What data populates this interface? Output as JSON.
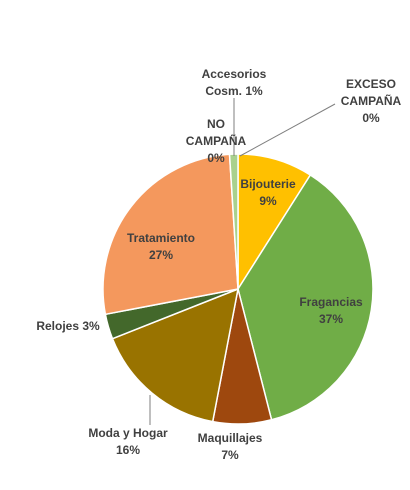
{
  "chart_data": {
    "type": "pie",
    "slices": [
      {
        "name": "Bijouterie",
        "value": 9,
        "label_lines": [
          "Bijouterie",
          "9%"
        ],
        "color": "#ffc000"
      },
      {
        "name": "Fragancias",
        "value": 37,
        "label_lines": [
          "Fragancias",
          "37%"
        ],
        "color": "#70ad47"
      },
      {
        "name": "Maquillajes",
        "value": 7,
        "label_lines": [
          "Maquillajes",
          "7%"
        ],
        "color": "#9e480e"
      },
      {
        "name": "Moda y Hogar",
        "value": 16,
        "label_lines": [
          "Moda y Hogar",
          "16%"
        ],
        "color": "#997300"
      },
      {
        "name": "Relojes",
        "value": 3,
        "label_lines": [
          "Relojes 3%"
        ],
        "color": "#43682b"
      },
      {
        "name": "Tratamiento",
        "value": 27,
        "label_lines": [
          "Tratamiento",
          "27%"
        ],
        "color": "#f4985d"
      },
      {
        "name": "NO CAMPAÑA",
        "value": 0,
        "label_lines": [
          "NO",
          "CAMPAÑA",
          "0%"
        ],
        "color": "#5b9bd5"
      },
      {
        "name": "Accesorios Cosm.",
        "value": 1,
        "label_lines": [
          "Accesorios",
          "Cosm. 1%"
        ],
        "color": "#a9d18e"
      },
      {
        "name": "EXCESO CAMPAÑA",
        "value": 0,
        "label_lines": [
          "EXCESO",
          "CAMPAÑA",
          "0%"
        ],
        "color": "#264478"
      }
    ]
  }
}
